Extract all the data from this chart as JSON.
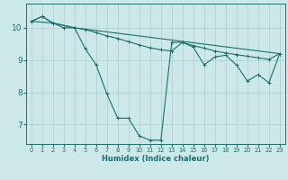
{
  "xlabel": "Humidex (Indice chaleur)",
  "bg_color": "#cce8e8",
  "grid_color": "#aad4d4",
  "line_color": "#1a7070",
  "spine_color": "#1a7070",
  "xmin": -0.5,
  "xmax": 23.5,
  "ymin": 6.4,
  "ymax": 10.75,
  "yticks": [
    7,
    8,
    9,
    10
  ],
  "xticks": [
    0,
    1,
    2,
    3,
    4,
    5,
    6,
    7,
    8,
    9,
    10,
    11,
    12,
    13,
    14,
    15,
    16,
    17,
    18,
    19,
    20,
    21,
    22,
    23
  ],
  "line1_x": [
    0,
    1,
    2,
    3,
    4,
    5,
    6,
    7,
    8,
    9,
    10,
    11,
    12,
    13,
    14,
    15,
    16,
    17,
    18,
    19,
    20,
    21,
    22,
    23
  ],
  "line1_y": [
    10.2,
    10.35,
    10.15,
    10.0,
    10.0,
    9.35,
    8.85,
    7.95,
    7.2,
    7.2,
    6.65,
    6.52,
    6.52,
    9.55,
    9.55,
    9.4,
    8.85,
    9.1,
    9.15,
    8.85,
    8.35,
    8.55,
    8.3,
    9.2
  ],
  "line2_x": [
    0,
    1,
    2,
    4,
    5,
    6,
    7,
    8,
    9,
    10,
    11,
    12,
    13,
    14,
    15,
    16,
    17,
    18,
    19,
    20,
    21,
    22,
    23
  ],
  "line2_y": [
    10.2,
    10.35,
    10.15,
    10.0,
    9.95,
    9.85,
    9.75,
    9.67,
    9.57,
    9.47,
    9.38,
    9.32,
    9.28,
    9.55,
    9.45,
    9.37,
    9.28,
    9.22,
    9.17,
    9.12,
    9.07,
    9.02,
    9.2
  ],
  "line3_x": [
    0,
    2,
    4,
    23
  ],
  "line3_y": [
    10.2,
    10.15,
    10.0,
    9.2
  ]
}
